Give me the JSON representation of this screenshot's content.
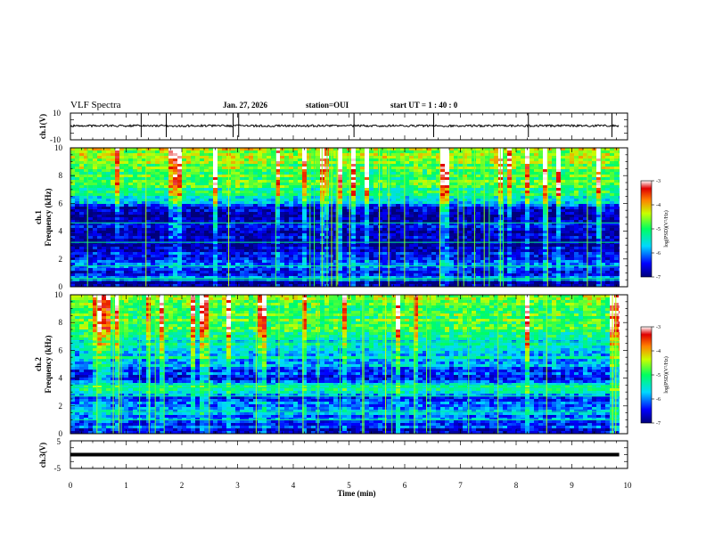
{
  "header": {
    "title": "VLF Spectra",
    "date": "Jan. 27, 2026",
    "station": "station=OUI",
    "start_ut": "start UT =  1 : 40 : 0"
  },
  "chart_data": [
    {
      "type": "line",
      "name": "ch.1 waveform",
      "ylabel": "ch.1(V)",
      "ylim": [
        -10,
        10
      ],
      "yticks": [
        "10",
        "-10"
      ],
      "baseline": 0.5,
      "spikes_min": [
        1.27,
        1.72,
        2.92,
        3.02,
        5.09,
        6.52,
        8.22,
        9.72
      ],
      "x_end_min": 9.85
    },
    {
      "type": "heatmap",
      "name": "ch.1 spectrogram",
      "ylabel": "ch.1 Frequency (kHz)",
      "ylim": [
        0,
        10
      ],
      "yticks": [
        "0",
        "2",
        "4",
        "6",
        "8",
        "10"
      ],
      "colorbar": {
        "label": "log(PSD)(V²/Hz)",
        "ticks": [
          "-3",
          "-4",
          "-5",
          "-6",
          "-7"
        ],
        "range": [
          -7,
          -3
        ]
      },
      "profile": [
        [
          0,
          -6.8
        ],
        [
          0.3,
          -6.9
        ],
        [
          0.6,
          -5.6
        ],
        [
          1.0,
          -6.5
        ],
        [
          1.5,
          -6.1
        ],
        [
          2.0,
          -6.3
        ],
        [
          2.5,
          -6.6
        ],
        [
          3.0,
          -6.8
        ],
        [
          3.5,
          -6.5
        ],
        [
          4.0,
          -6.7
        ],
        [
          4.3,
          -6.5
        ],
        [
          5.0,
          -6.9
        ],
        [
          5.8,
          -6.3
        ],
        [
          6.2,
          -5.6
        ],
        [
          6.5,
          -5.4
        ],
        [
          7.0,
          -5.1
        ],
        [
          8.0,
          -4.8
        ],
        [
          9.0,
          -4.6
        ],
        [
          10,
          -4.5
        ]
      ],
      "bright_lines_kHz": [
        0.5,
        0.6,
        1.5,
        3.2,
        4.6
      ],
      "x_end_min": 9.85
    },
    {
      "type": "heatmap",
      "name": "ch.2 spectrogram",
      "ylabel": "ch.2 Frequency (kHz)",
      "ylim": [
        0,
        10
      ],
      "yticks": [
        "0",
        "2",
        "4",
        "6",
        "8",
        "10"
      ],
      "colorbar": {
        "label": "log(PSD)(V²/Hz)",
        "ticks": [
          "-3",
          "-4",
          "-5",
          "-6",
          "-7"
        ],
        "range": [
          -7,
          -3
        ]
      },
      "profile": [
        [
          0,
          -6.7
        ],
        [
          0.5,
          -6.3
        ],
        [
          1.0,
          -6.2
        ],
        [
          1.5,
          -5.9
        ],
        [
          2.0,
          -6.0
        ],
        [
          2.5,
          -6.3
        ],
        [
          3.0,
          -5.6
        ],
        [
          3.4,
          -5.3
        ],
        [
          3.8,
          -6.2
        ],
        [
          4.5,
          -6.4
        ],
        [
          5.0,
          -5.9
        ],
        [
          5.5,
          -5.6
        ],
        [
          6.2,
          -5.5
        ],
        [
          6.6,
          -5.5
        ],
        [
          7.0,
          -5.0
        ],
        [
          8.0,
          -4.9
        ],
        [
          9.0,
          -4.8
        ],
        [
          10,
          -4.6
        ]
      ],
      "bright_lines_kHz": [
        1.0,
        1.6,
        2.7,
        3.3,
        3.5,
        6.6
      ],
      "x_end_min": 9.85
    },
    {
      "type": "line",
      "name": "ch.3 waveform",
      "ylabel": "ch.3(V)",
      "ylim": [
        -5,
        5
      ],
      "yticks": [
        "5",
        "-5"
      ],
      "value": 0,
      "x_end_min": 9.85
    }
  ],
  "xaxis": {
    "label": "Time (min)",
    "ticks": [
      "0",
      "1",
      "2",
      "3",
      "4",
      "5",
      "6",
      "7",
      "8",
      "9",
      "10"
    ],
    "range": [
      0,
      10
    ]
  }
}
